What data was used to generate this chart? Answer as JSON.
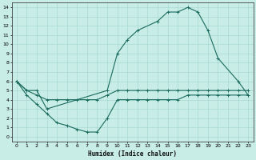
{
  "xlabel": "Humidex (Indice chaleur)",
  "xlim": [
    -0.5,
    23.5
  ],
  "ylim": [
    -0.5,
    14.5
  ],
  "xticks": [
    0,
    1,
    2,
    3,
    4,
    5,
    6,
    7,
    8,
    9,
    10,
    11,
    12,
    13,
    14,
    15,
    16,
    17,
    18,
    19,
    20,
    21,
    22,
    23
  ],
  "yticks": [
    0,
    1,
    2,
    3,
    4,
    5,
    6,
    7,
    8,
    9,
    10,
    11,
    12,
    13,
    14
  ],
  "bg_color": "#c8ece6",
  "line_color": "#1a6b5e",
  "grid_color": "#a8d8d0",
  "line1_x": [
    0,
    1,
    2,
    3,
    9,
    10,
    11,
    12,
    14,
    15,
    16,
    17,
    18,
    19,
    20,
    22,
    23
  ],
  "line1_y": [
    6,
    5,
    5,
    3,
    5,
    9,
    10.5,
    11.5,
    12.5,
    13.5,
    13.5,
    14,
    13.5,
    11.5,
    8.5,
    6,
    4.5
  ],
  "line2_x": [
    0,
    1,
    2,
    3,
    4,
    5,
    6,
    7,
    8,
    9,
    10,
    11,
    12,
    13,
    14,
    15,
    16,
    17,
    18,
    19,
    20,
    21,
    22,
    23
  ],
  "line2_y": [
    6,
    4.5,
    3.5,
    2.5,
    1.5,
    1.2,
    0.8,
    0.5,
    0.5,
    2,
    4,
    4,
    4,
    4,
    4,
    4,
    4,
    4.5,
    4.5,
    4.5,
    4.5,
    4.5,
    4.5,
    4.5
  ],
  "line3_x": [
    0,
    1,
    2,
    3,
    4,
    5,
    6,
    7,
    8,
    9,
    10,
    11,
    12,
    13,
    14,
    15,
    16,
    17,
    18,
    19,
    20,
    21,
    22,
    23
  ],
  "line3_y": [
    6,
    5,
    4.5,
    4,
    4,
    4,
    4,
    4,
    4,
    4.5,
    5,
    5,
    5,
    5,
    5,
    5,
    5,
    5,
    5,
    5,
    5,
    5,
    5,
    5
  ]
}
